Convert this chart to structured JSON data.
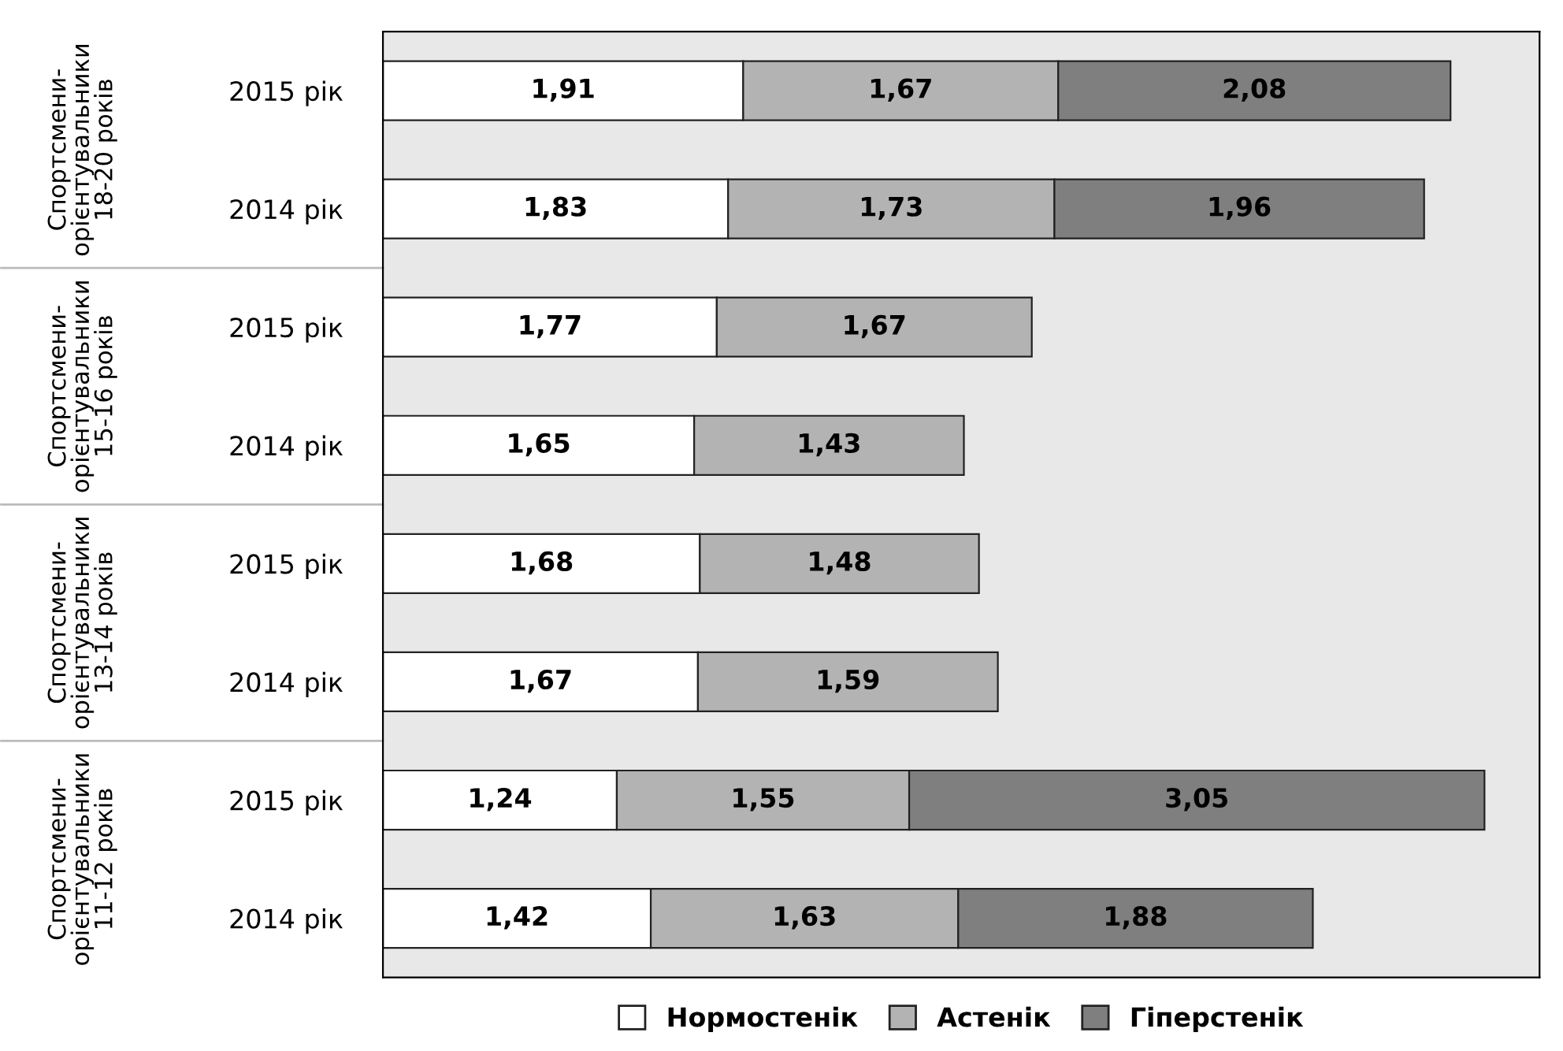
{
  "chart_data": {
    "type": "bar",
    "orientation": "horizontal",
    "stacked": true,
    "legend": "bottom",
    "grid": false,
    "tick_labels": "y",
    "categories": [
      "2015 рік",
      "2014 рік",
      "2015 рік",
      "2014 рік",
      "2015 рік",
      "2014 рік",
      "2015 рік",
      "2014 рік"
    ],
    "annotations": [
      "Спортсмени-\nорієнтувальники\n18-20 років",
      "Спортсмени-\nорієнтувальники\n15-16 років",
      "Спортсмени-\nорієнтувальники\n13-14 років",
      "Спортсмени-\nорієнтувальники\n11-12 років"
    ],
    "series": [
      {
        "name": "Нормостенік",
        "color": "#ffffff",
        "values": [
          1.91,
          1.83,
          1.77,
          1.65,
          1.68,
          1.67,
          1.24,
          1.42
        ],
        "value_labels": [
          "1,91",
          "1,83",
          "1,77",
          "1,65",
          "1,68",
          "1,67",
          "1,24",
          "1,42"
        ]
      },
      {
        "name": "Астенік",
        "color": "#b3b3b3",
        "values": [
          1.67,
          1.73,
          1.67,
          1.43,
          1.48,
          1.59,
          1.55,
          1.63
        ],
        "value_labels": [
          "1,67",
          "1,73",
          "1,67",
          "1,43",
          "1,48",
          "1,59",
          "1,55",
          "1,63"
        ]
      },
      {
        "name": "Гіперстенік",
        "color": "#7f7f7f",
        "values": [
          2.08,
          1.96,
          null,
          null,
          null,
          null,
          3.05,
          1.88
        ],
        "value_labels": [
          "2,08",
          "1,96",
          null,
          null,
          null,
          null,
          "3,05",
          "1,88"
        ]
      }
    ]
  }
}
